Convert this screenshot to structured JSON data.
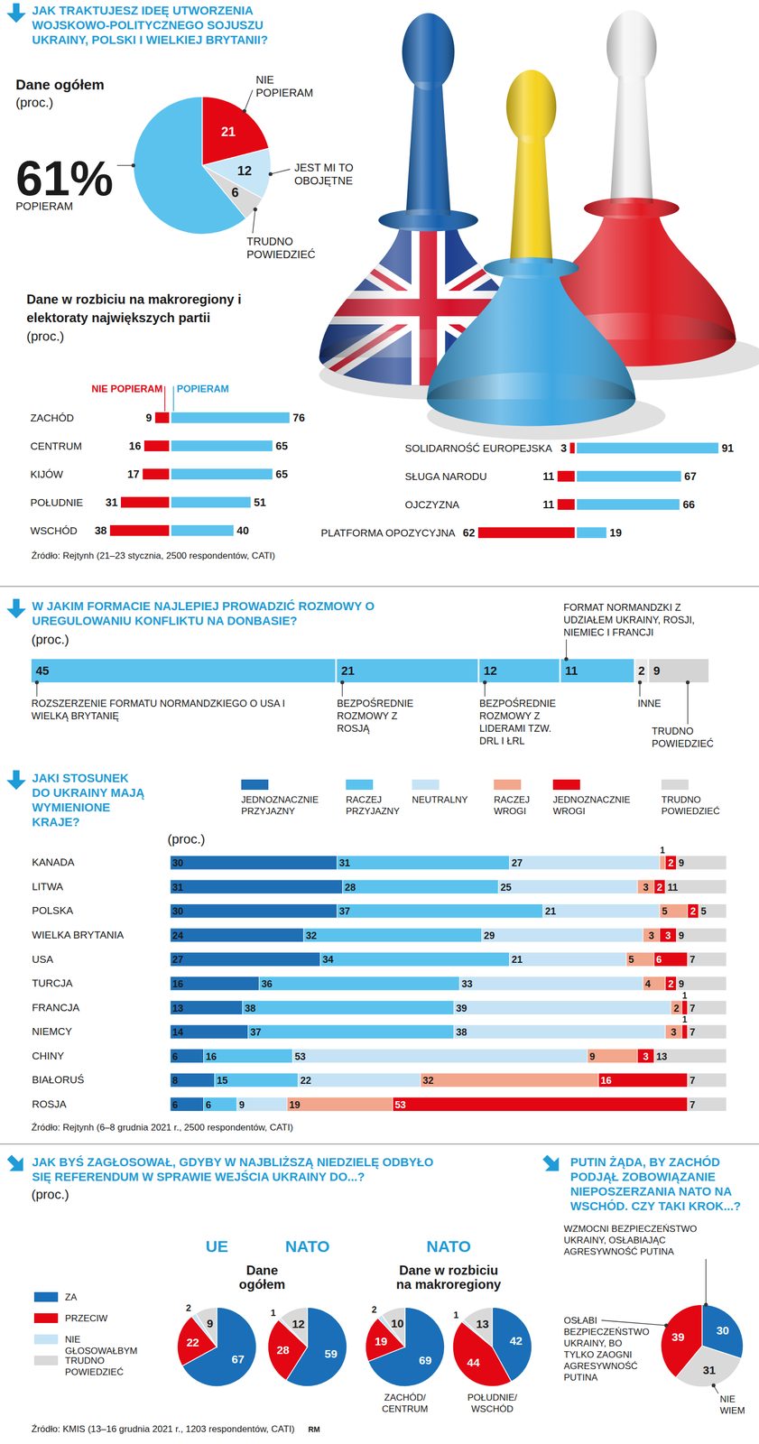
{
  "chart_data": [
    {
      "type": "pie",
      "title": "JAK TRAKTUJESZ IDEĘ UTWORZENIA WOJSKOWO-POLITYCZNEGO SOJUSZU UKRAINY, POLSKI I WIELKIEJ BRYTANII?",
      "subtitle": "Dane ogółem",
      "unit_label": "(proc.)",
      "categories": [
        "NIE POPIERAM",
        "JEST MI TO OBOJĘTNE",
        "TRUDNO POWIEDZIEĆ",
        "POPIERAM"
      ],
      "values": [
        21,
        12,
        6,
        61
      ],
      "value_labels": [
        "21",
        "12",
        "6",
        "61%"
      ],
      "colors": [
        "#e30613",
        "#c6e6f7",
        "#d9d9d9",
        "#5bc2ee"
      ],
      "data_labels": true
    },
    {
      "type": "bar",
      "orientation": "horizontal",
      "title": "Dane w rozbiciu na makroregiony i elektoraty największych partii",
      "unit_label": "(proc.)",
      "categories": [
        "ZACHÓD",
        "CENTRUM",
        "KIJÓW",
        "POŁUDNIE",
        "WSCHÓD"
      ],
      "series": [
        {
          "name": "NIE POPIERAM",
          "color": "#e30613",
          "values": [
            9,
            16,
            17,
            31,
            38
          ]
        },
        {
          "name": "POPIERAM",
          "color": "#5bc2ee",
          "values": [
            76,
            65,
            65,
            51,
            40
          ]
        }
      ],
      "xlim": [
        0,
        100
      ],
      "tick_labels": "y",
      "data_labels": true,
      "legend": "top"
    },
    {
      "type": "bar",
      "orientation": "horizontal",
      "categories": [
        "SOLIDARNOŚĆ EUROPEJSKA",
        "SŁUGA NARODU",
        "OJCZYZNA",
        "PLATFORMA OPOZYCYJNA"
      ],
      "series": [
        {
          "color": "#e30613",
          "values": [
            3,
            11,
            11,
            62
          ]
        },
        {
          "color": "#5bc2ee",
          "values": [
            91,
            67,
            66,
            19
          ]
        }
      ],
      "xlim": [
        0,
        100
      ],
      "tick_labels": "y",
      "data_labels": true,
      "source": "Źródło: Rejtynh (21–23 stycznia, 2500 respondentów, CATI)"
    },
    {
      "type": "bar",
      "orientation": "horizontal",
      "stacked": true,
      "title": "W JAKIM FORMACIE NAJLEPIEJ PROWADZIĆ ROZMOWY O UREGULOWANIU KONFLIKTU NA DONBASIE?",
      "unit_label": "(proc.)",
      "categories": [
        "ROZSZERZENIE FORMATU NORMANDZKIEGO O USA I WIELKĄ BRYTANIĘ",
        "BEZPOŚREDNIE ROZMOWY Z ROSJĄ",
        "BEZPOŚREDNIE ROZMOWY Z LIDERAMI TZW. DRL I ŁRL",
        "FORMAT NORMANDZKI Z UDZIAŁEM UKRAINY, ROSJI, NIEMIEC I FRANCJI",
        "INNE",
        "TRUDNO POWIEDZIEĆ"
      ],
      "values": [
        45,
        21,
        12,
        11,
        2,
        9
      ],
      "colors": [
        "#5bc2ee",
        "#5bc2ee",
        "#5bc2ee",
        "#5bc2ee",
        "#e8e8e8",
        "#d4d4d4"
      ],
      "xlim": [
        0,
        100
      ],
      "tick_labels": false,
      "data_labels": true
    },
    {
      "type": "bar",
      "orientation": "horizontal",
      "stacked": true,
      "title": "JAKI STOSUNEK DO UKRAINY MAJĄ WYMIENIONE KRAJE?",
      "unit_label": "(proc.)",
      "categories": [
        "KANADA",
        "LITWA",
        "POLSKA",
        "WIELKA BRYTANIA",
        "USA",
        "TURCJA",
        "FRANCJA",
        "NIEMCY",
        "CHINY",
        "BIAŁORUŚ",
        "ROSJA"
      ],
      "series": [
        {
          "name": "JEDNOZNACZNIE PRZYJAZNY",
          "color": "#1f6fb5",
          "values": [
            30,
            31,
            30,
            24,
            27,
            16,
            13,
            14,
            6,
            8,
            6
          ]
        },
        {
          "name": "RACZEJ PRZYJAZNY",
          "color": "#5bc2ee",
          "values": [
            31,
            28,
            37,
            32,
            34,
            36,
            38,
            37,
            16,
            15,
            6
          ]
        },
        {
          "name": "NEUTRALNY",
          "color": "#c6e3f5",
          "values": [
            27,
            25,
            21,
            29,
            21,
            33,
            39,
            38,
            53,
            22,
            9
          ]
        },
        {
          "name": "RACZEJ WROGI",
          "color": "#f2a68c",
          "values": [
            1,
            3,
            5,
            3,
            5,
            4,
            2,
            3,
            9,
            32,
            19
          ]
        },
        {
          "name": "JEDNOZNACZNIE WROGI",
          "color": "#e30613",
          "values": [
            2,
            2,
            2,
            3,
            6,
            2,
            1,
            1,
            3,
            16,
            53
          ]
        },
        {
          "name": "TRUDNO POWIEDZIEĆ",
          "color": "#d9d9d9",
          "values": [
            9,
            11,
            5,
            9,
            7,
            9,
            7,
            7,
            13,
            7,
            7
          ]
        }
      ],
      "xlim": [
        0,
        100
      ],
      "tick_labels": "y",
      "data_labels": true,
      "legend": "top",
      "source": "Źródło: Rejtynh (6–8 grudnia 2021 r., 2500 respondentów, CATI)"
    },
    {
      "type": "pie",
      "title": "JAK BYŚ ZAGŁOSOWAŁ, GDYBY W NAJBLIŻSZĄ NIEDZIELĘ ODBYŁO SIĘ REFERENDUM W SPRAWIE WEJŚCIA UKRAINY DO...?",
      "unit_label": "(proc.)",
      "categories": [
        "ZA",
        "PRZECIW",
        "NIE GŁOSOWAŁBYM",
        "TRUDNO POWIEDZIEĆ"
      ],
      "colors": [
        "#1a6fb8",
        "#e30613",
        "#c6e3f5",
        "#d9d9d9"
      ],
      "legend": "left",
      "data_labels": true,
      "panels": [
        {
          "title": "Dane ogółem",
          "series": [
            {
              "name": "UE",
              "values": [
                67,
                22,
                2,
                9
              ]
            },
            {
              "name": "NATO",
              "values": [
                59,
                28,
                1,
                12
              ]
            }
          ]
        },
        {
          "title": "NATO",
          "subtitle": "Dane w rozbiciu na makroregiony",
          "series": [
            {
              "name": "ZACHÓD/ CENTRUM",
              "values": [
                69,
                19,
                2,
                10
              ]
            },
            {
              "name": "POŁUDNIE/ WSCHÓD",
              "values": [
                42,
                44,
                1,
                13
              ]
            }
          ]
        }
      ],
      "source": "Źródło: KMIS (13–16 grudnia 2021 r., 1203 respondentów, CATI)",
      "annotations": [
        "RM"
      ]
    },
    {
      "type": "pie",
      "title": "PUTIN ŻĄDA, BY ZACHÓD PODJĄŁ ZOBOWIĄZANIE NIEPOSZERZANIA NATO NA WSCHÓD. CZY TAKI KROK...?",
      "categories": [
        "WZMOCNI BEZPIECZEŃSTWO UKRAINY, OSŁABIAJĄC AGRESYWNOŚĆ PUTINA",
        "NIE WIEM",
        "OSŁABI BEZPIECZEŃSTWO UKRAINY, BO TYLKO ZAOGNI AGRESYWNOŚĆ PUTINA"
      ],
      "values": [
        30,
        31,
        39
      ],
      "colors": [
        "#1a6fb8",
        "#d9d9d9",
        "#e30613"
      ],
      "data_labels": true
    }
  ]
}
